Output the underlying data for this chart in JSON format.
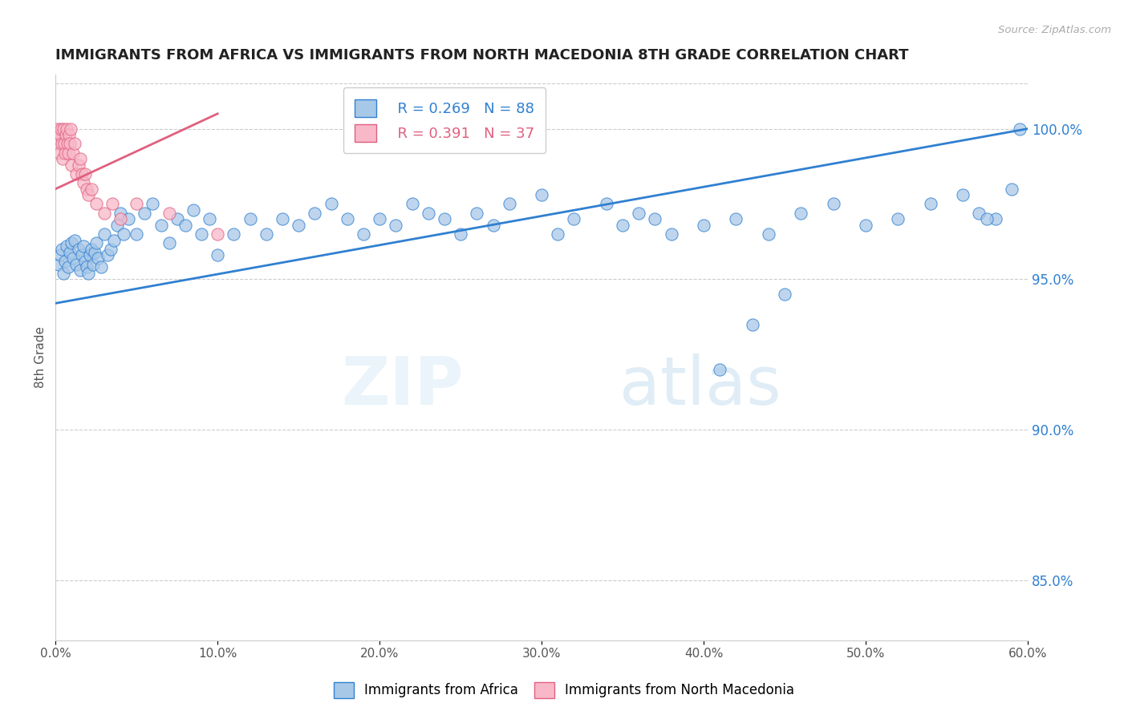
{
  "title": "IMMIGRANTS FROM AFRICA VS IMMIGRANTS FROM NORTH MACEDONIA 8TH GRADE CORRELATION CHART",
  "source": "Source: ZipAtlas.com",
  "ylabel": "8th Grade",
  "watermark": "ZIPatlas",
  "xlim": [
    0.0,
    60.0
  ],
  "ylim": [
    83.0,
    101.8
  ],
  "yticks": [
    85.0,
    90.0,
    95.0,
    100.0
  ],
  "xticks": [
    0.0,
    10.0,
    20.0,
    30.0,
    40.0,
    50.0,
    60.0
  ],
  "blue_R": 0.269,
  "blue_N": 88,
  "pink_R": 0.391,
  "pink_N": 37,
  "blue_color": "#A8C8E8",
  "pink_color": "#F8B8C8",
  "blue_line_color": "#3080D0",
  "pink_line_color": "#E06080",
  "legend_blue": "Immigrants from Africa",
  "legend_pink": "Immigrants from North Macedonia",
  "blue_x": [
    0.2,
    0.3,
    0.4,
    0.5,
    0.6,
    0.7,
    0.8,
    0.9,
    1.0,
    1.1,
    1.2,
    1.3,
    1.4,
    1.5,
    1.6,
    1.7,
    1.8,
    1.9,
    2.0,
    2.1,
    2.2,
    2.3,
    2.4,
    2.5,
    2.6,
    2.8,
    3.0,
    3.2,
    3.4,
    3.6,
    3.8,
    4.0,
    4.2,
    4.5,
    5.0,
    5.5,
    6.0,
    6.5,
    7.0,
    7.5,
    8.0,
    8.5,
    9.0,
    9.5,
    10.0,
    11.0,
    12.0,
    13.0,
    14.0,
    15.0,
    16.0,
    17.0,
    18.0,
    19.0,
    20.0,
    21.0,
    22.0,
    23.0,
    24.0,
    25.0,
    26.0,
    27.0,
    28.0,
    30.0,
    31.0,
    32.0,
    34.0,
    35.0,
    36.0,
    37.0,
    38.0,
    40.0,
    42.0,
    44.0,
    46.0,
    48.0,
    50.0,
    52.0,
    54.0,
    56.0,
    57.0,
    58.0,
    59.0,
    59.5,
    45.0,
    43.0,
    41.0,
    57.5
  ],
  "blue_y": [
    95.5,
    95.8,
    96.0,
    95.2,
    95.6,
    96.1,
    95.4,
    95.9,
    96.2,
    95.7,
    96.3,
    95.5,
    96.0,
    95.3,
    95.8,
    96.1,
    95.6,
    95.4,
    95.2,
    95.8,
    96.0,
    95.5,
    95.9,
    96.2,
    95.7,
    95.4,
    96.5,
    95.8,
    96.0,
    96.3,
    96.8,
    97.2,
    96.5,
    97.0,
    96.5,
    97.2,
    97.5,
    96.8,
    96.2,
    97.0,
    96.8,
    97.3,
    96.5,
    97.0,
    95.8,
    96.5,
    97.0,
    96.5,
    97.0,
    96.8,
    97.2,
    97.5,
    97.0,
    96.5,
    97.0,
    96.8,
    97.5,
    97.2,
    97.0,
    96.5,
    97.2,
    96.8,
    97.5,
    97.8,
    96.5,
    97.0,
    97.5,
    96.8,
    97.2,
    97.0,
    96.5,
    96.8,
    97.0,
    96.5,
    97.2,
    97.5,
    96.8,
    97.0,
    97.5,
    97.8,
    97.2,
    97.0,
    98.0,
    100.0,
    94.5,
    93.5,
    92.0,
    97.0
  ],
  "pink_x": [
    0.1,
    0.15,
    0.2,
    0.25,
    0.3,
    0.35,
    0.4,
    0.45,
    0.5,
    0.55,
    0.6,
    0.65,
    0.7,
    0.75,
    0.8,
    0.85,
    0.9,
    0.95,
    1.0,
    1.1,
    1.2,
    1.3,
    1.4,
    1.5,
    1.6,
    1.7,
    1.8,
    1.9,
    2.0,
    2.2,
    2.5,
    3.0,
    3.5,
    4.0,
    5.0,
    7.0,
    10.0
  ],
  "pink_y": [
    99.8,
    100.0,
    99.5,
    99.2,
    99.8,
    100.0,
    99.5,
    99.0,
    100.0,
    99.5,
    99.2,
    99.8,
    100.0,
    99.5,
    99.2,
    99.8,
    99.5,
    100.0,
    98.8,
    99.2,
    99.5,
    98.5,
    98.8,
    99.0,
    98.5,
    98.2,
    98.5,
    98.0,
    97.8,
    98.0,
    97.5,
    97.2,
    97.5,
    97.0,
    97.5,
    97.2,
    96.5
  ]
}
